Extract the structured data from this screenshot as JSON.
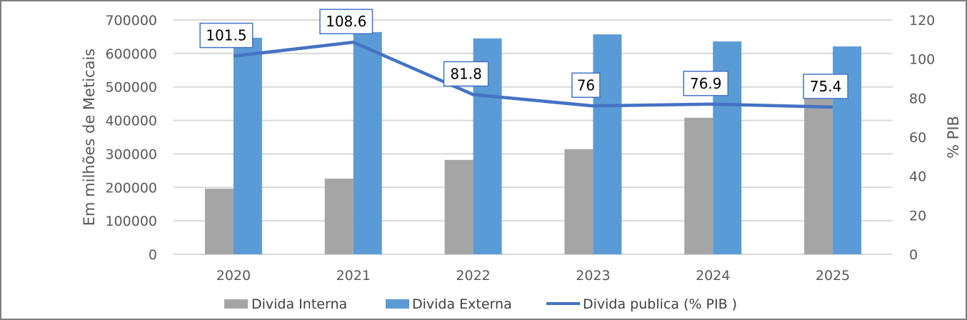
{
  "chart_data": {
    "type": "bar",
    "categories": [
      "2020",
      "2021",
      "2022",
      "2023",
      "2024",
      "2025"
    ],
    "series": [
      {
        "name": "Divida Interna",
        "type": "bar",
        "axis": "left",
        "color": "#a5a5a5",
        "values": [
          196000,
          226000,
          282000,
          314000,
          408000,
          474000
        ]
      },
      {
        "name": "Divida Externa",
        "type": "bar",
        "axis": "left",
        "color": "#5b9bd5",
        "values": [
          647000,
          664000,
          645000,
          657000,
          636000,
          621000
        ]
      },
      {
        "name": "Divida publica (% PIB )",
        "type": "line",
        "axis": "right",
        "color": "#4472c4",
        "values": [
          101.5,
          108.6,
          81.8,
          76,
          76.9,
          75.4
        ],
        "labels": [
          "101.5",
          "108.6",
          "81.8",
          "76",
          "76.9",
          "75.4"
        ]
      }
    ],
    "ylabel": "Em milhões de Meticais",
    "y2label": "% PIB",
    "ylim": [
      0,
      700000
    ],
    "y2lim": [
      0,
      120
    ],
    "yticks": [
      "0",
      "100000",
      "200000",
      "300000",
      "400000",
      "500000",
      "600000",
      "700000"
    ],
    "y2ticks": [
      "0",
      "20",
      "40",
      "60",
      "80",
      "100",
      "120"
    ],
    "grid": true,
    "legend_position": "bottom"
  }
}
